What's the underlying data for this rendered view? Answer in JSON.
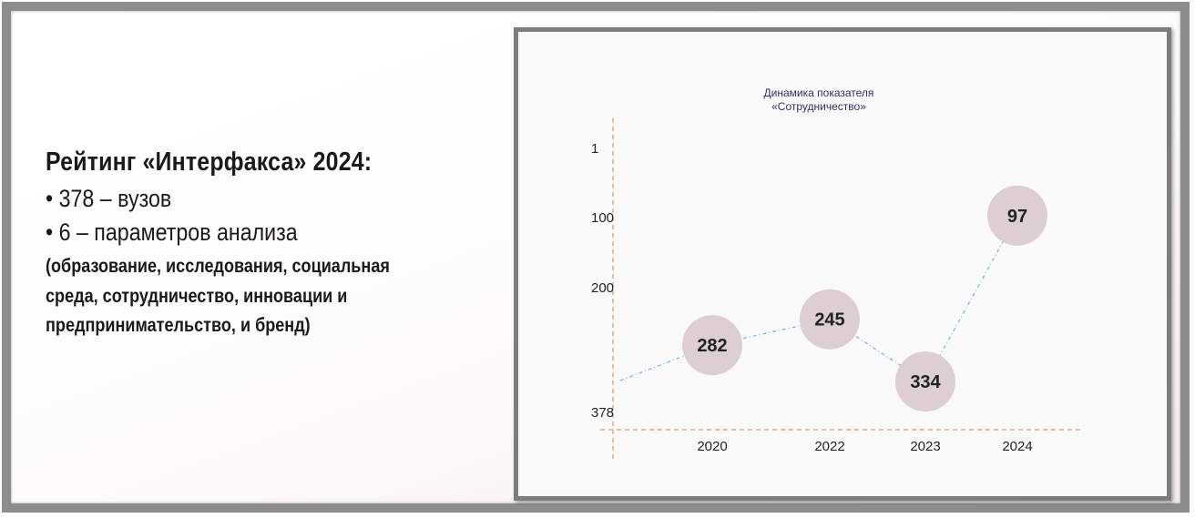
{
  "left_panel": {
    "heading": "Рейтинг «Интерфакса» 2024:",
    "bullets": [
      "• 378 – вузов",
      "• 6 – параметров анализа"
    ],
    "params_lines": [
      "(образование, исследования, социальная",
      "среда, сотрудничество, инновации и",
      "предпринимательство, и бренд)"
    ]
  },
  "chart_data": {
    "type": "line",
    "title_lines": [
      "Динамика показателя",
      "«Сотрудничество»"
    ],
    "categories": [
      "2020",
      "2022",
      "2023",
      "2024"
    ],
    "values": [
      282,
      245,
      334,
      97
    ],
    "y_ticks": [
      "1",
      "100",
      "200",
      "378"
    ],
    "ylim": [
      1,
      378
    ],
    "y_inverted": true,
    "grid": false,
    "colors": {
      "line": "#7fb8d6",
      "axis": "#f0a46a",
      "bubble": "#dcced3",
      "label": "#222222"
    }
  }
}
